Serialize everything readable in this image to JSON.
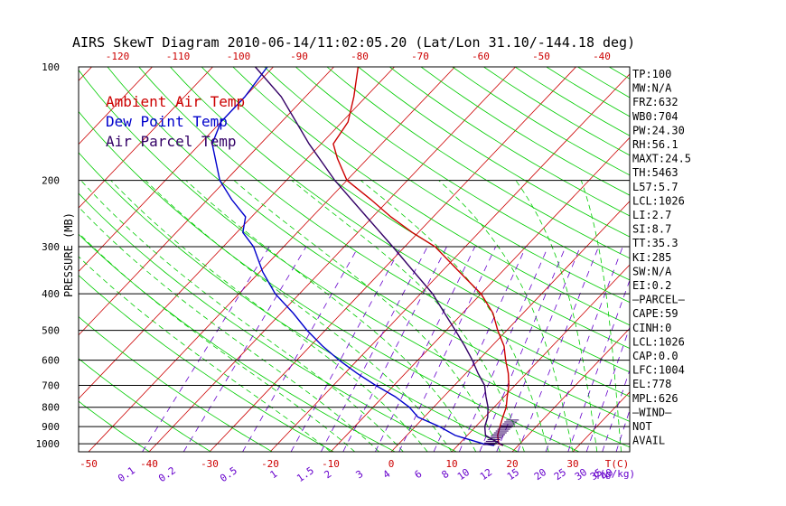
{
  "chart_data": {
    "type": "line",
    "title": "AIRS SkewT Diagram 2010-06-14/11:02:05.20 (Lat/Lon 31.10/-144.18 deg)",
    "ylabel": "PRESSURE (MB)",
    "xlabel": "T(C)",
    "mixing_ratio_label": "q(g/kg)",
    "ylim": [
      1050,
      100
    ],
    "xlim": [
      -50,
      40
    ],
    "y_scale": "log",
    "pressure_ticks": [
      100,
      200,
      300,
      400,
      500,
      600,
      700,
      800,
      900,
      1000
    ],
    "top_temp_ticks": [
      -120,
      -110,
      -100,
      -90,
      -80,
      -70,
      -60,
      -50,
      -40
    ],
    "bottom_temp_ticks": [
      -50,
      -40,
      -30,
      -20,
      -10,
      0,
      10,
      20,
      30
    ],
    "mixing_ratio_ticks": [
      "0.1",
      "0.2",
      "0.5",
      "1",
      "1.5",
      "2",
      "3",
      "4",
      "6",
      "8",
      "10",
      "12",
      "15",
      "20",
      "25",
      "30",
      "35",
      "40"
    ],
    "colors": {
      "ambient": "#cc0000",
      "dewpoint": "#0000cc",
      "parcel": "#330066",
      "isotherm": "#cc0000",
      "dry_adiabat": "#00cc00",
      "moist_adiabat": "#00cc00",
      "mixing_ratio": "#6600cc",
      "isobar": "#000000"
    },
    "legend": [
      {
        "label": "Ambient Air Temp",
        "color": "#cc0000"
      },
      {
        "label": "Dew Point Temp",
        "color": "#0000cc"
      },
      {
        "label": "Air Parcel Temp",
        "color": "#330066"
      }
    ],
    "legend_position": "top-left",
    "series": [
      {
        "name": "Ambient Air Temp",
        "points": [
          [
            1010,
            17.5
          ],
          [
            1000,
            16.5
          ],
          [
            950,
            15
          ],
          [
            900,
            14
          ],
          [
            850,
            13
          ],
          [
            800,
            12
          ],
          [
            750,
            10.5
          ],
          [
            700,
            9
          ],
          [
            650,
            7
          ],
          [
            600,
            4.5
          ],
          [
            550,
            2
          ],
          [
            500,
            -1.5
          ],
          [
            450,
            -5
          ],
          [
            400,
            -10
          ],
          [
            350,
            -17
          ],
          [
            300,
            -25
          ],
          [
            275,
            -31
          ],
          [
            250,
            -37
          ],
          [
            225,
            -43
          ],
          [
            200,
            -50
          ],
          [
            175,
            -55
          ],
          [
            160,
            -58
          ],
          [
            140,
            -59
          ],
          [
            120,
            -62
          ],
          [
            100,
            -66
          ]
        ]
      },
      {
        "name": "Dew Point Temp",
        "points": [
          [
            1010,
            16
          ],
          [
            1000,
            14
          ],
          [
            950,
            8
          ],
          [
            900,
            4
          ],
          [
            850,
            -1
          ],
          [
            800,
            -4
          ],
          [
            750,
            -8
          ],
          [
            700,
            -13
          ],
          [
            650,
            -18
          ],
          [
            600,
            -23
          ],
          [
            550,
            -28
          ],
          [
            500,
            -33
          ],
          [
            450,
            -38
          ],
          [
            400,
            -44
          ],
          [
            350,
            -49.5
          ],
          [
            300,
            -55
          ],
          [
            275,
            -59
          ],
          [
            250,
            -61
          ],
          [
            225,
            -66
          ],
          [
            200,
            -71
          ],
          [
            160,
            -78
          ],
          [
            140,
            -80
          ],
          [
            120,
            -80
          ],
          [
            100,
            -81
          ]
        ]
      },
      {
        "name": "Air Parcel Temp",
        "points": [
          [
            1010,
            17.5
          ],
          [
            950,
            13
          ],
          [
            900,
            11.5
          ],
          [
            850,
            10.5
          ],
          [
            800,
            9
          ],
          [
            750,
            7
          ],
          [
            700,
            5
          ],
          [
            650,
            2
          ],
          [
            600,
            -1
          ],
          [
            550,
            -4.5
          ],
          [
            500,
            -8.5
          ],
          [
            450,
            -13
          ],
          [
            400,
            -18
          ],
          [
            350,
            -24.5
          ],
          [
            300,
            -32
          ],
          [
            250,
            -41
          ],
          [
            200,
            -52
          ],
          [
            160,
            -62
          ],
          [
            120,
            -74
          ],
          [
            100,
            -83
          ]
        ]
      }
    ],
    "wind_barbs_pressure": [
      1005,
      995,
      985,
      975,
      965,
      955,
      945,
      935,
      925,
      915,
      905,
      895,
      885,
      875,
      865
    ],
    "indices": [
      "TP:100",
      "MW:N/A",
      "FRZ:632",
      "WB0:704",
      "PW:24.30",
      "RH:56.1",
      "MAXT:24.5",
      "TH:5463",
      "L57:5.7",
      "LCL:1026",
      "LI:2.7",
      "SI:8.7",
      "TT:35.3",
      "KI:285",
      "SW:N/A",
      "EI:0.2",
      "—PARCEL—",
      "CAPE:59",
      "CINH:0",
      "LCL:1026",
      "CAP:0.0",
      "LFC:1004",
      "EL:778",
      "MPL:626",
      "—WIND—",
      "NOT",
      "AVAIL"
    ]
  }
}
